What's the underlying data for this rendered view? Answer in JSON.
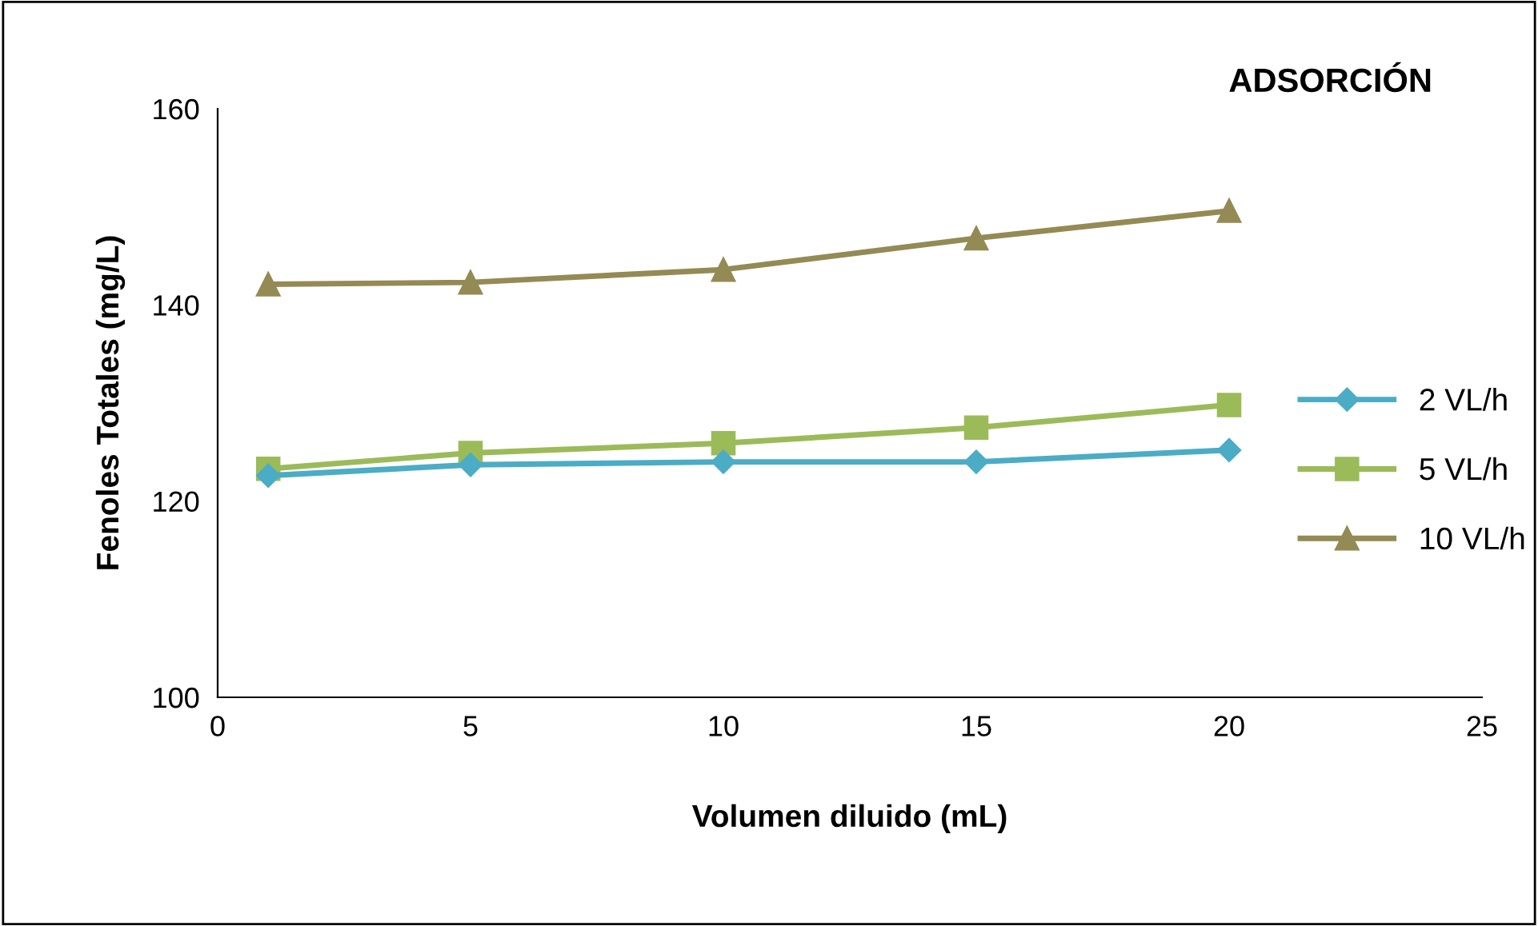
{
  "chart_data": {
    "type": "line",
    "title": "ADSORCIÓN",
    "xlabel": "Volumen diluido (mL)",
    "ylabel": "Fenoles Totales (mg/L)",
    "x": [
      1,
      5,
      10,
      15,
      20
    ],
    "series": [
      {
        "name": "2 VL/h",
        "color": "#4bacc6",
        "marker": "diamond",
        "values": [
          122.6,
          123.7,
          124.0,
          124.0,
          125.2
        ]
      },
      {
        "name": "5 VL/h",
        "color": "#9bbb59",
        "marker": "square",
        "values": [
          123.3,
          124.9,
          125.9,
          127.5,
          129.8
        ]
      },
      {
        "name": "10 VL/h",
        "color": "#948a54",
        "marker": "triangle",
        "values": [
          142.1,
          142.3,
          143.6,
          146.8,
          149.6
        ]
      }
    ],
    "xlim": [
      0,
      25
    ],
    "xticks": [
      0,
      5,
      10,
      15,
      20,
      25
    ],
    "ylim": [
      100,
      160
    ],
    "yticks": [
      100,
      120,
      140,
      160
    ],
    "grid": false,
    "legend": "right",
    "line_style": "solid"
  }
}
